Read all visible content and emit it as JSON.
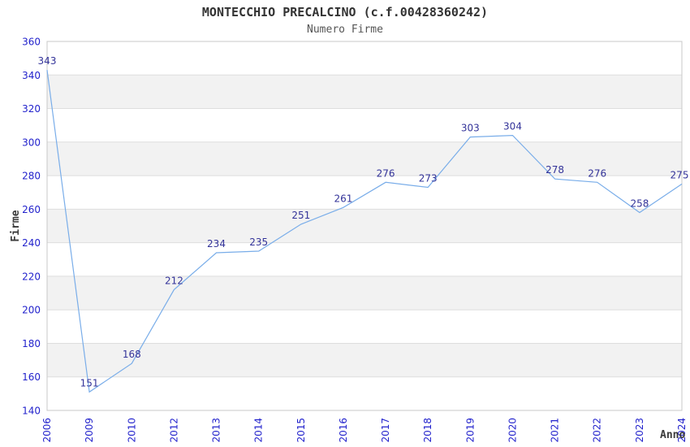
{
  "chart_data": {
    "type": "line",
    "title": "MONTECCHIO PRECALCINO (c.f.00428360242)",
    "subtitle": "Numero Firme",
    "xlabel": "Anno",
    "ylabel": "Firme",
    "categories": [
      "2006",
      "2009",
      "2010",
      "2012",
      "2013",
      "2014",
      "2015",
      "2016",
      "2017",
      "2018",
      "2019",
      "2020",
      "2021",
      "2022",
      "2023",
      "2024"
    ],
    "values": [
      343,
      151,
      168,
      212,
      234,
      235,
      251,
      261,
      276,
      273,
      303,
      304,
      278,
      276,
      258,
      275
    ],
    "ylim": [
      140,
      360
    ],
    "ytick_step": 20,
    "yticks": [
      140,
      160,
      180,
      200,
      220,
      240,
      260,
      280,
      300,
      320,
      340,
      360
    ],
    "x_tick_rotation": 90,
    "grid": "horizontal gridlines every 20 with alternating gray bands",
    "legend": "none",
    "markers": "none, value labels above each point",
    "colors": {
      "line": "#79ade9",
      "tick_label": "#2222cc",
      "data_label": "#333399",
      "band": "#f2f2f2",
      "grid": "#dedede",
      "plot_border": "#c8c8c8",
      "title": "#333333",
      "subtitle": "#555555",
      "axis_label": "#3a3a3a",
      "background": "#ffffff"
    }
  }
}
